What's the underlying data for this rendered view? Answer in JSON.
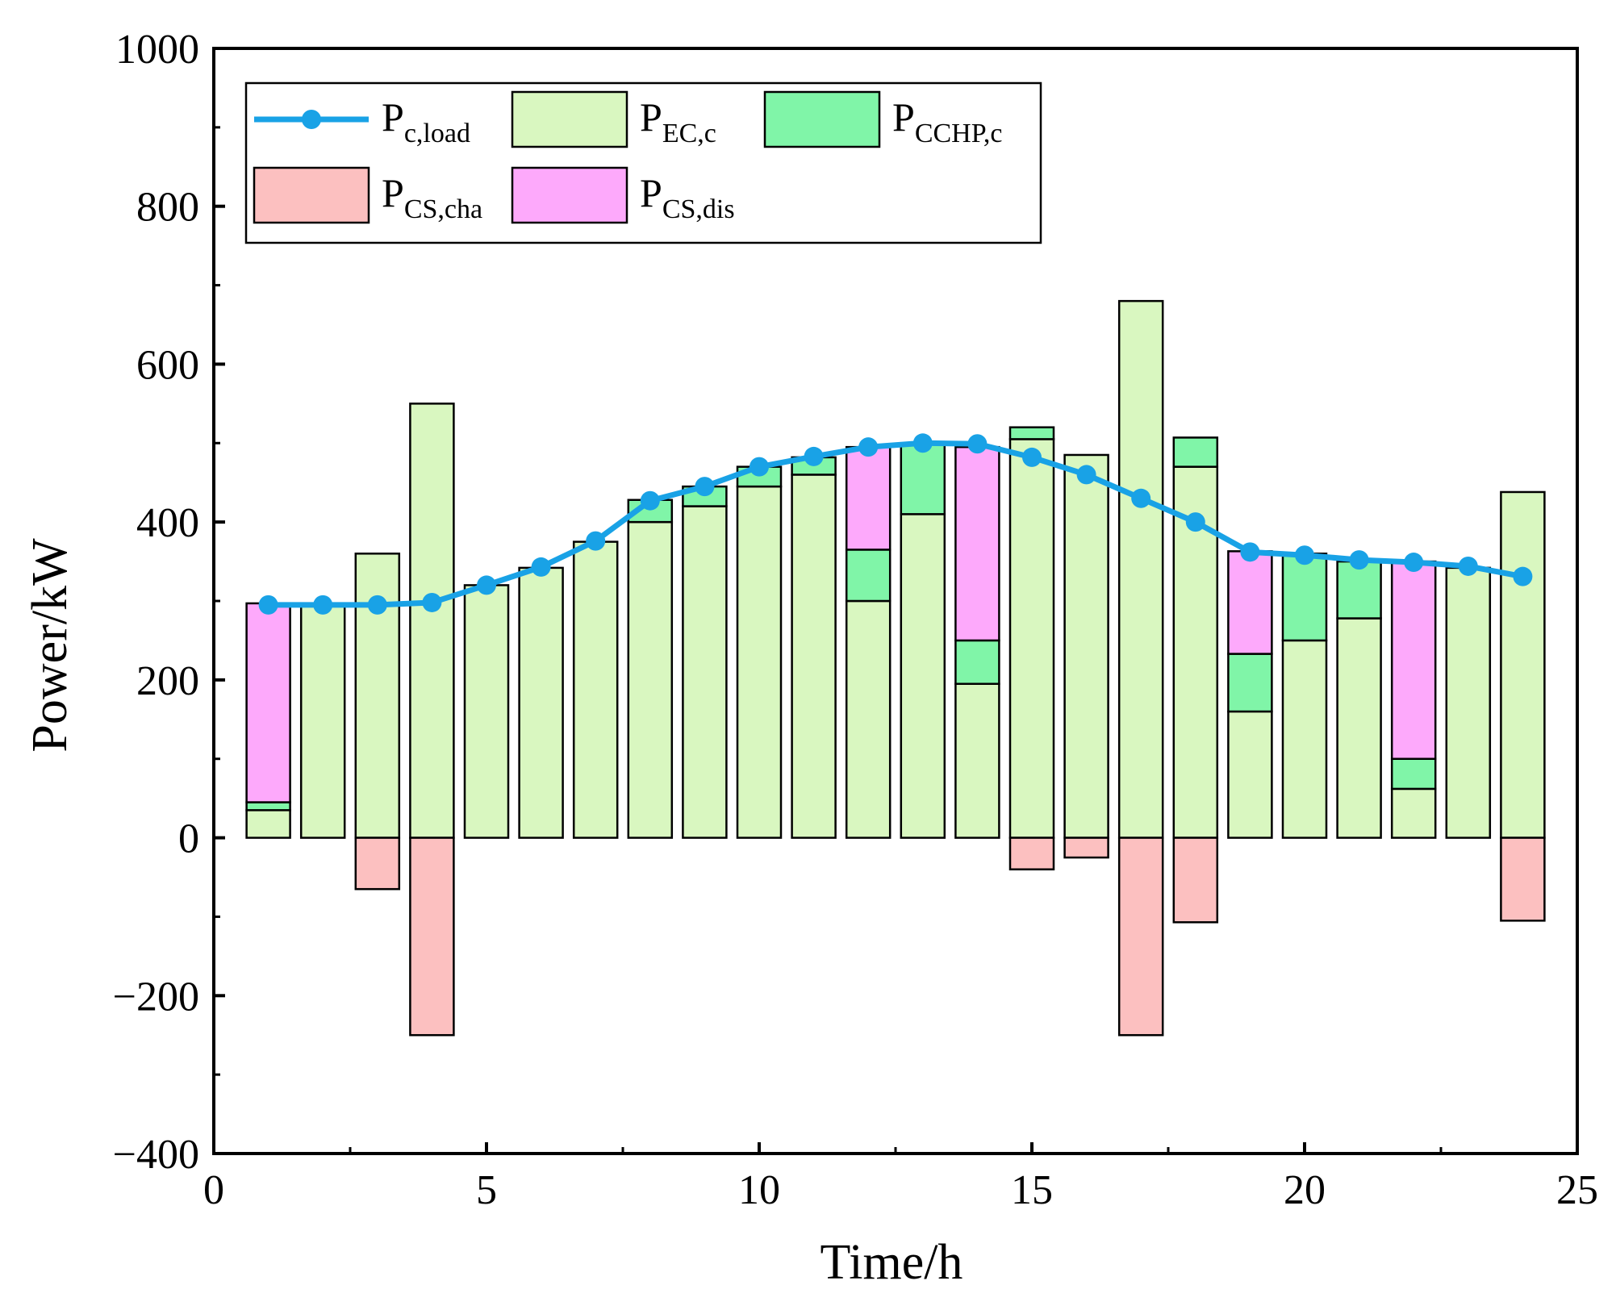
{
  "chart_data": {
    "type": "bar",
    "stacked": true,
    "xlabel": "Time/h",
    "ylabel": "Power/kW",
    "xlim": [
      0,
      25
    ],
    "ylim": [
      -400,
      1000
    ],
    "xticks": [
      0,
      5,
      10,
      15,
      20,
      25
    ],
    "yticks": [
      -400,
      -200,
      0,
      200,
      400,
      600,
      800,
      1000
    ],
    "ytick_labels": [
      "−400",
      "−200",
      "0",
      "200",
      "400",
      "600",
      "800",
      "1000"
    ],
    "x": [
      1,
      2,
      3,
      4,
      5,
      6,
      7,
      8,
      9,
      10,
      11,
      12,
      13,
      14,
      15,
      16,
      17,
      18,
      19,
      20,
      21,
      22,
      23,
      24
    ],
    "series": [
      {
        "key": "ec",
        "name": "EC,c",
        "color": "#d9f7c0",
        "values": [
          35,
          295,
          360,
          550,
          320,
          342,
          375,
          400,
          420,
          445,
          460,
          300,
          410,
          195,
          505,
          485,
          680,
          470,
          160,
          250,
          278,
          62,
          342,
          438
        ]
      },
      {
        "key": "cchp",
        "name": "CCHP,c",
        "color": "#80f5a8",
        "values": [
          10,
          0,
          0,
          0,
          0,
          0,
          0,
          28,
          25,
          25,
          22,
          65,
          90,
          55,
          15,
          0,
          0,
          37,
          73,
          110,
          72,
          38,
          0,
          0
        ]
      },
      {
        "key": "dis",
        "name": "CS,dis",
        "color": "#fda9fb",
        "values": [
          252,
          0,
          0,
          0,
          0,
          0,
          0,
          0,
          0,
          0,
          0,
          130,
          0,
          245,
          0,
          0,
          0,
          0,
          130,
          0,
          0,
          250,
          0,
          0
        ]
      },
      {
        "key": "cha",
        "name": "CS,cha",
        "color": "#fcc0c0",
        "values": [
          0,
          0,
          -65,
          -250,
          0,
          0,
          0,
          0,
          0,
          0,
          0,
          0,
          0,
          0,
          -40,
          -25,
          -250,
          -107,
          0,
          0,
          0,
          0,
          0,
          -105
        ]
      },
      {
        "key": "load",
        "name": "c,load",
        "type": "line",
        "color": "#19a2e6",
        "values": [
          295,
          295,
          295,
          298,
          320,
          343,
          376,
          427,
          445,
          470,
          483,
          495,
          500,
          499,
          482,
          460,
          430,
          400,
          362,
          358,
          352,
          349,
          344,
          331
        ]
      }
    ],
    "legend": {
      "position": "top-left",
      "items": [
        {
          "key": "load",
          "main": "P",
          "sub": "c,load"
        },
        {
          "key": "ec",
          "main": "P",
          "sub": "EC,c"
        },
        {
          "key": "cchp",
          "main": "P",
          "sub": "CCHP,c"
        },
        {
          "key": "cha",
          "main": "P",
          "sub": "CS,cha"
        },
        {
          "key": "dis",
          "main": "P",
          "sub": "CS,dis"
        }
      ]
    }
  }
}
